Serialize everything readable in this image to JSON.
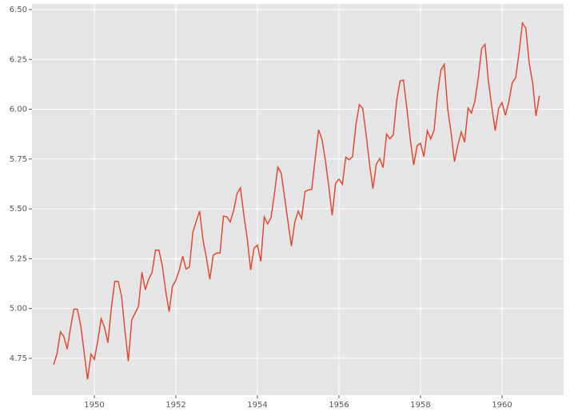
{
  "chart_data": {
    "type": "line",
    "color": "#e24a33",
    "grid": true,
    "xlim": [
      1948.47,
      1961.51
    ],
    "ylim": [
      4.565,
      6.528
    ],
    "xticks": [
      1950,
      1952,
      1954,
      1956,
      1958,
      1960
    ],
    "yticks": [
      4.75,
      {
        "value": 5,
        "label": "5.00"
      },
      5.25,
      {
        "value": 5.5,
        "label": "5.50"
      },
      5.75,
      {
        "value": 6,
        "label": "6.00"
      },
      6.25,
      {
        "value": 6.5,
        "label": "6.50"
      }
    ],
    "x": [
      1949.0,
      1949.083,
      1949.167,
      1949.25,
      1949.333,
      1949.417,
      1949.5,
      1949.583,
      1949.667,
      1949.75,
      1949.833,
      1949.917,
      1950.0,
      1950.083,
      1950.167,
      1950.25,
      1950.333,
      1950.417,
      1950.5,
      1950.583,
      1950.667,
      1950.75,
      1950.833,
      1950.917,
      1951.0,
      1951.083,
      1951.167,
      1951.25,
      1951.333,
      1951.417,
      1951.5,
      1951.583,
      1951.667,
      1951.75,
      1951.833,
      1951.917,
      1952.0,
      1952.083,
      1952.167,
      1952.25,
      1952.333,
      1952.417,
      1952.5,
      1952.583,
      1952.667,
      1952.75,
      1952.833,
      1952.917,
      1953.0,
      1953.083,
      1953.167,
      1953.25,
      1953.333,
      1953.417,
      1953.5,
      1953.583,
      1953.667,
      1953.75,
      1953.833,
      1953.917,
      1954.0,
      1954.083,
      1954.167,
      1954.25,
      1954.333,
      1954.417,
      1954.5,
      1954.583,
      1954.667,
      1954.75,
      1954.833,
      1954.917,
      1955.0,
      1955.083,
      1955.167,
      1955.25,
      1955.333,
      1955.417,
      1955.5,
      1955.583,
      1955.667,
      1955.75,
      1955.833,
      1955.917,
      1956.0,
      1956.083,
      1956.167,
      1956.25,
      1956.333,
      1956.417,
      1956.5,
      1956.583,
      1956.667,
      1956.75,
      1956.833,
      1956.917,
      1957.0,
      1957.083,
      1957.167,
      1957.25,
      1957.333,
      1957.417,
      1957.5,
      1957.583,
      1957.667,
      1957.75,
      1957.833,
      1957.917,
      1958.0,
      1958.083,
      1958.167,
      1958.25,
      1958.333,
      1958.417,
      1958.5,
      1958.583,
      1958.667,
      1958.75,
      1958.833,
      1958.917,
      1959.0,
      1959.083,
      1959.167,
      1959.25,
      1959.333,
      1959.417,
      1959.5,
      1959.583,
      1959.667,
      1959.75,
      1959.833,
      1959.917,
      1960.0,
      1960.083,
      1960.167,
      1960.25,
      1960.333,
      1960.417,
      1960.5,
      1960.583,
      1960.667,
      1960.75,
      1960.833,
      1960.917
    ],
    "values": [
      4.718,
      4.771,
      4.883,
      4.86,
      4.796,
      4.905,
      4.997,
      4.997,
      4.913,
      4.779,
      4.644,
      4.771,
      4.745,
      4.836,
      4.949,
      4.905,
      4.828,
      5.004,
      5.136,
      5.136,
      5.063,
      4.89,
      4.736,
      4.942,
      4.977,
      5.011,
      5.182,
      5.094,
      5.147,
      5.182,
      5.293,
      5.293,
      5.215,
      5.088,
      4.984,
      5.112,
      5.142,
      5.193,
      5.263,
      5.198,
      5.209,
      5.384,
      5.438,
      5.489,
      5.342,
      5.252,
      5.147,
      5.268,
      5.278,
      5.278,
      5.464,
      5.46,
      5.434,
      5.493,
      5.576,
      5.606,
      5.468,
      5.352,
      5.193,
      5.303,
      5.318,
      5.236,
      5.46,
      5.425,
      5.455,
      5.576,
      5.71,
      5.68,
      5.557,
      5.434,
      5.313,
      5.434,
      5.489,
      5.451,
      5.587,
      5.595,
      5.598,
      5.753,
      5.897,
      5.849,
      5.743,
      5.613,
      5.468,
      5.628,
      5.649,
      5.624,
      5.759,
      5.746,
      5.762,
      5.924,
      6.023,
      6.004,
      5.872,
      5.724,
      5.602,
      5.724,
      5.753,
      5.707,
      5.875,
      5.852,
      5.872,
      6.045,
      6.142,
      6.146,
      6.001,
      5.849,
      5.72,
      5.817,
      5.829,
      5.762,
      5.892,
      5.852,
      5.894,
      6.075,
      6.196,
      6.225,
      6.001,
      5.883,
      5.737,
      5.82,
      5.886,
      5.835,
      6.006,
      5.981,
      6.04,
      6.157,
      6.306,
      6.326,
      6.138,
      6.009,
      5.892,
      6.004,
      6.033,
      5.969,
      6.038,
      6.133,
      6.157,
      6.282,
      6.433,
      6.407,
      6.23,
      6.133,
      5.966,
      6.068
    ]
  }
}
